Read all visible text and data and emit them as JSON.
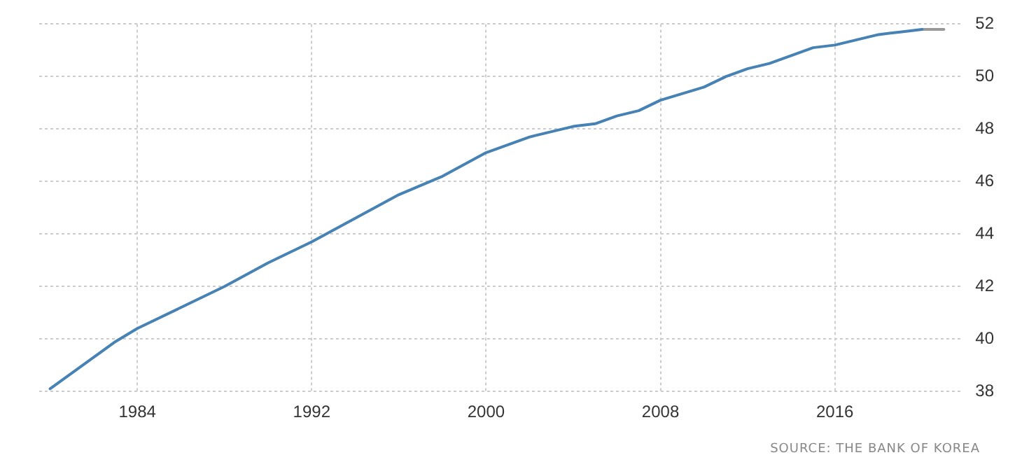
{
  "chart_data": {
    "type": "line",
    "x": [
      1980,
      1981,
      1982,
      1983,
      1984,
      1986,
      1988,
      1990,
      1992,
      1994,
      1996,
      1998,
      2000,
      2002,
      2004,
      2005,
      2006,
      2007,
      2008,
      2010,
      2011,
      2012,
      2013,
      2014,
      2015,
      2016,
      2017,
      2018,
      2019,
      2020
    ],
    "series": [
      {
        "color": "#4682b4",
        "values": [
          38.1,
          38.7,
          39.3,
          39.9,
          40.4,
          41.2,
          42.0,
          42.9,
          43.7,
          44.6,
          45.5,
          46.2,
          47.1,
          47.7,
          48.1,
          48.2,
          48.5,
          48.7,
          49.1,
          49.6,
          50.0,
          50.3,
          50.5,
          50.8,
          51.1,
          51.2,
          51.4,
          51.6,
          51.7,
          51.8
        ]
      },
      {
        "color": "#999999",
        "x": [
          2020,
          2021
        ],
        "values": [
          51.8,
          51.8
        ]
      }
    ],
    "xlim": [
      1979.5,
      2021.8
    ],
    "xticks": [
      1984,
      1992,
      2000,
      2008,
      2016
    ],
    "ylim": [
      38,
      52
    ],
    "yticks": [
      38,
      40,
      42,
      44,
      46,
      48,
      50,
      52
    ],
    "grid": true,
    "legend": false,
    "marker": "none",
    "line_style": "solid",
    "annotations": [
      "SOURCE: THE BANK OF KOREA"
    ]
  }
}
